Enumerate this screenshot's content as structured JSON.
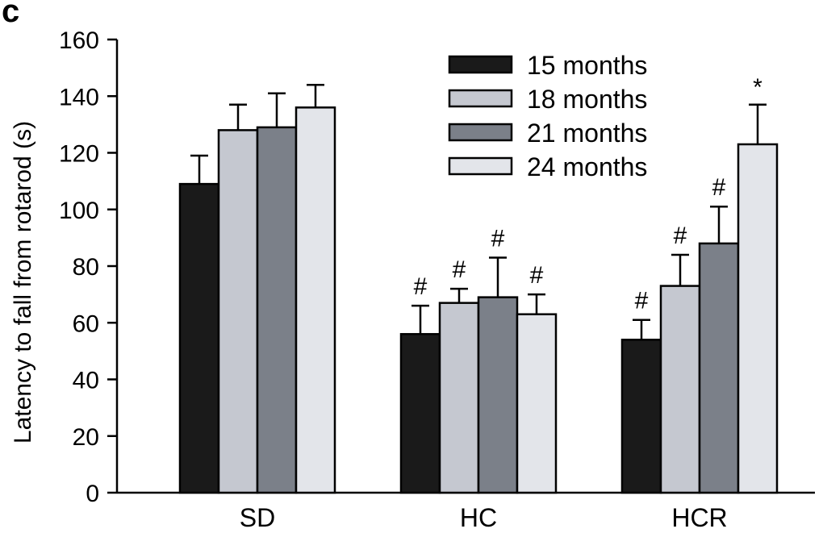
{
  "panel_label": "c",
  "chart_data": {
    "type": "bar",
    "title": "",
    "xlabel": "",
    "ylabel": "Latency to fall from rotarod (s)",
    "ylim": [
      0,
      160
    ],
    "yticks": [
      0,
      20,
      40,
      60,
      80,
      100,
      120,
      140,
      160
    ],
    "categories": [
      "SD",
      "HC",
      "HCR"
    ],
    "series": [
      {
        "name": "15 months",
        "color": "#1a1a1a",
        "values": [
          109,
          56,
          54
        ],
        "errors": [
          10,
          10,
          7
        ],
        "annotations": [
          "",
          "#",
          "#"
        ]
      },
      {
        "name": "18 months",
        "color": "#c5c8d0",
        "values": [
          128,
          67,
          73
        ],
        "errors": [
          9,
          5,
          11
        ],
        "annotations": [
          "",
          "#",
          "#"
        ]
      },
      {
        "name": "21 months",
        "color": "#7b8089",
        "values": [
          129,
          69,
          88
        ],
        "errors": [
          12,
          14,
          13
        ],
        "annotations": [
          "",
          "#",
          "#"
        ]
      },
      {
        "name": "24 months",
        "color": "#e3e5ea",
        "values": [
          136,
          63,
          123
        ],
        "errors": [
          8,
          7,
          14
        ],
        "annotations": [
          "",
          "#",
          "*"
        ]
      }
    ],
    "legend_position": "top-right",
    "grid": false
  }
}
